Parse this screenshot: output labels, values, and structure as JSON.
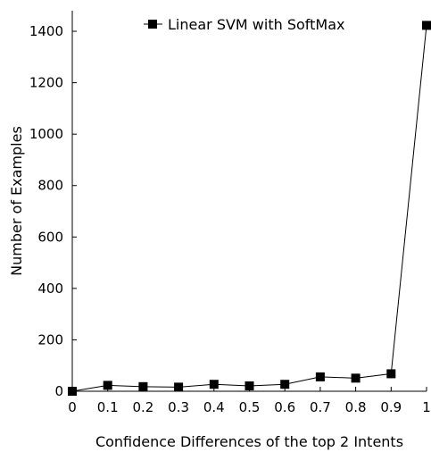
{
  "chart_data": {
    "type": "line",
    "xlabel": "Confidence Differences of the top 2 Intents",
    "ylabel": "Number of Examples",
    "xlim": [
      0,
      1
    ],
    "ylim": [
      0,
      1480
    ],
    "x_ticks": [
      "0",
      "0.1",
      "0.2",
      "0.3",
      "0.4",
      "0.5",
      "0.6",
      "0.7",
      "0.8",
      "0.9",
      "1"
    ],
    "y_ticks": [
      "0",
      "200",
      "400",
      "600",
      "800",
      "1000",
      "1200",
      "1400"
    ],
    "grid": false,
    "legend_position": "top-center",
    "series": [
      {
        "name": "Linear SVM with SoftMax",
        "color": "#000000",
        "marker": "square",
        "x": [
          0,
          0.1,
          0.2,
          0.3,
          0.4,
          0.5,
          0.6,
          0.7,
          0.8,
          0.9,
          1.0
        ],
        "y": [
          0,
          23,
          18,
          16,
          27,
          21,
          27,
          56,
          51,
          68,
          1423
        ]
      }
    ]
  }
}
